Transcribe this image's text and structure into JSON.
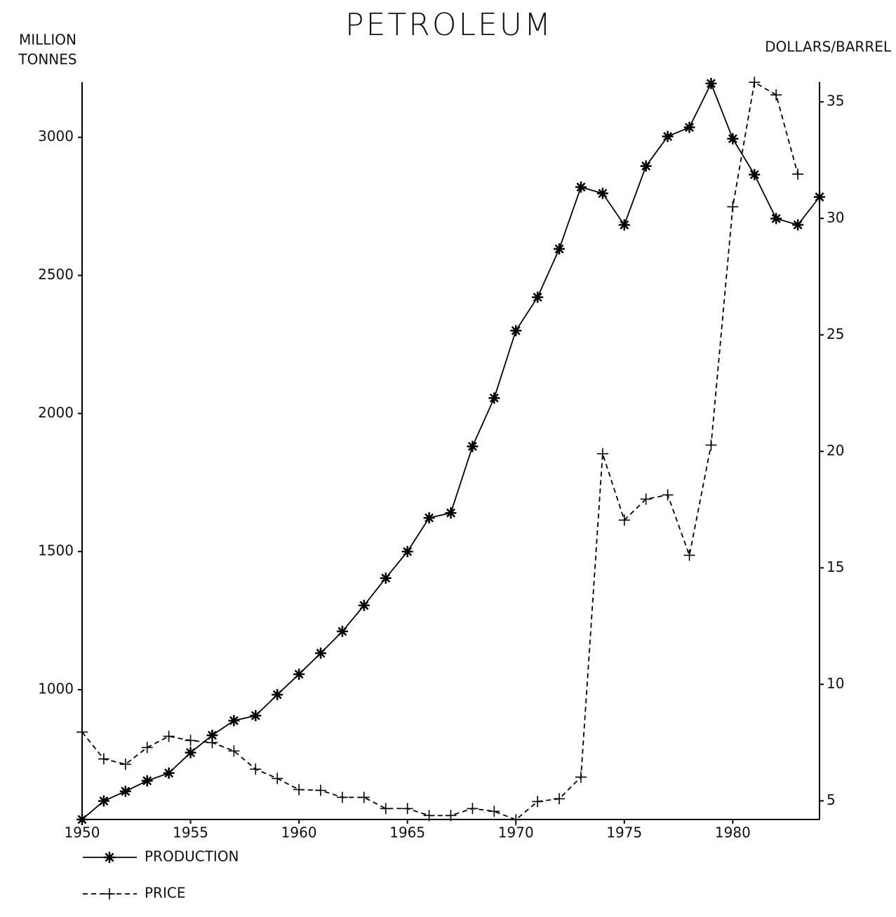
{
  "chart_data": {
    "type": "line",
    "title": "PETROLEUM",
    "y_label": [
      "MILLION",
      "TONNES"
    ],
    "y2_label": "DOLLARS/BARREL",
    "x": [
      1950,
      1951,
      1952,
      1953,
      1954,
      1955,
      1956,
      1957,
      1958,
      1959,
      1960,
      1961,
      1962,
      1963,
      1964,
      1965,
      1966,
      1967,
      1968,
      1969,
      1970,
      1971,
      1972,
      1973,
      1974,
      1975,
      1976,
      1977,
      1978,
      1979,
      1980,
      1981,
      1982,
      1983,
      1984
    ],
    "series": [
      {
        "name": "PRODUCTION",
        "color": "#000000",
        "marker": "asterisk",
        "dash": "solid",
        "values": [
          530,
          597,
          632,
          670,
          698,
          772,
          835,
          888,
          906,
          982,
          1056,
          1132,
          1211,
          1305,
          1404,
          1500,
          1622,
          1640,
          1881,
          2056,
          2300,
          2421,
          2596,
          2820,
          2797,
          2683,
          2896,
          3003,
          3036,
          3195,
          2995,
          2865,
          2706,
          2683,
          2784
        ]
      },
      {
        "name": "PRICE",
        "color": "#000000",
        "marker": "plus",
        "dash": "dashed",
        "axis": "y2",
        "values": [
          7.95,
          6.8,
          6.57,
          7.29,
          7.77,
          7.59,
          7.5,
          7.14,
          6.36,
          5.96,
          5.48,
          5.45,
          5.15,
          5.15,
          4.67,
          4.67,
          4.37,
          4.37,
          4.67,
          4.55,
          4.19,
          4.97,
          5.09,
          6.02,
          19.9,
          17.05,
          17.95,
          18.13,
          15.54,
          20.27,
          30.5,
          35.84,
          35.3,
          31.9,
          null
        ]
      }
    ],
    "xlim": [
      1950,
      1984
    ],
    "xticks": [
      1950,
      1955,
      1960,
      1965,
      1970,
      1975,
      1980
    ],
    "ylim": [
      530,
      3200
    ],
    "yticks": [
      1000,
      1500,
      2000,
      2500,
      3000
    ],
    "y2lim": [
      4.2,
      35.85
    ],
    "y2ticks": [
      5,
      10,
      15,
      20,
      25,
      30,
      35
    ],
    "grid": false
  }
}
